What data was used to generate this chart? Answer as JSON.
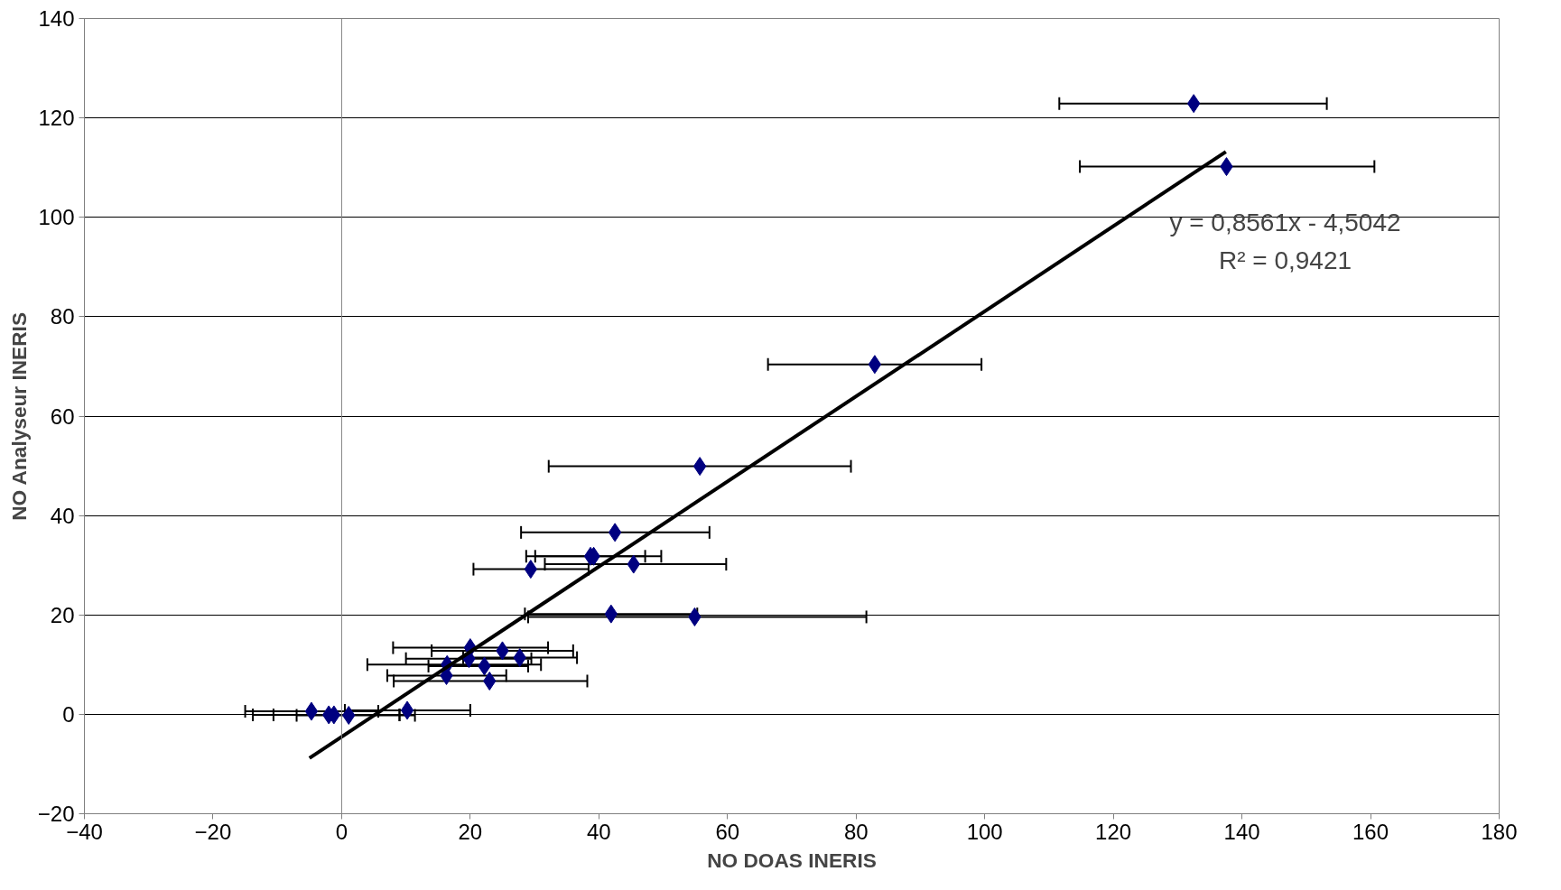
{
  "chart_data": {
    "type": "scatter",
    "xlabel": "NO DOAS INERIS",
    "ylabel": "NO Analyseur INERIS",
    "marker": "diamond",
    "grid": "y",
    "xlim": [
      -40,
      180
    ],
    "ylim": [
      -20,
      140
    ],
    "xticks": [
      -40,
      -20,
      0,
      20,
      40,
      60,
      80,
      100,
      120,
      140,
      160,
      180
    ],
    "yticks": [
      -20,
      0,
      20,
      40,
      60,
      80,
      100,
      120,
      140
    ],
    "series": [
      {
        "color": "#000080",
        "x": [
          132.5,
          137.6,
          82.9,
          55.7,
          42.5,
          38.7,
          39.2,
          45.4,
          29.4,
          41.9,
          54.9,
          20.0,
          25.0,
          19.8,
          27.7,
          16.4,
          22.2,
          16.3,
          23.0,
          -4.7,
          -2.0,
          -1.2,
          1.1,
          10.2
        ],
        "values": [
          122.9,
          110.2,
          70.4,
          49.9,
          36.6,
          31.8,
          31.8,
          30.2,
          29.2,
          20.2,
          19.6,
          13.4,
          12.8,
          11.2,
          11.4,
          10.0,
          9.7,
          7.8,
          6.7,
          0.6,
          -0.1,
          -0.1,
          -0.2,
          0.8
        ],
        "xerrors": [
          [
            111.6,
            153.2
          ],
          [
            114.8,
            160.6
          ],
          [
            66.3,
            99.5
          ],
          [
            32.2,
            79.2
          ],
          [
            27.9,
            57.2
          ],
          [
            28.7,
            47.2
          ],
          [
            30.1,
            49.7
          ],
          [
            31.6,
            59.8
          ],
          [
            20.5,
            38.4
          ],
          [
            28.5,
            55.3
          ],
          [
            29.0,
            81.6
          ],
          [
            8.0,
            32.1
          ],
          [
            14.0,
            36.0
          ],
          [
            10.0,
            29.5
          ],
          [
            18.9,
            36.6
          ],
          [
            4.0,
            31.0
          ],
          [
            13.5,
            29.0
          ],
          [
            7.1,
            25.6
          ],
          [
            8.1,
            38.2
          ],
          [
            -15.0,
            5.7
          ],
          [
            -13.8,
            9.0
          ],
          [
            -10.6,
            9.0
          ],
          [
            -7.0,
            11.4
          ],
          [
            0.5,
            20.0
          ]
        ]
      },
      {
        "type": "line",
        "color": "#000000",
        "x": [
          -5,
          137.5
        ],
        "values": [
          -8.8,
          113.2
        ],
        "marker": "none"
      }
    ],
    "ref_lines": [
      {
        "axis": "x",
        "value": 0,
        "color": "#808080"
      }
    ],
    "annotations": [
      "y = 0,8561x - 4,5042",
      "R² = 0,9421"
    ]
  }
}
